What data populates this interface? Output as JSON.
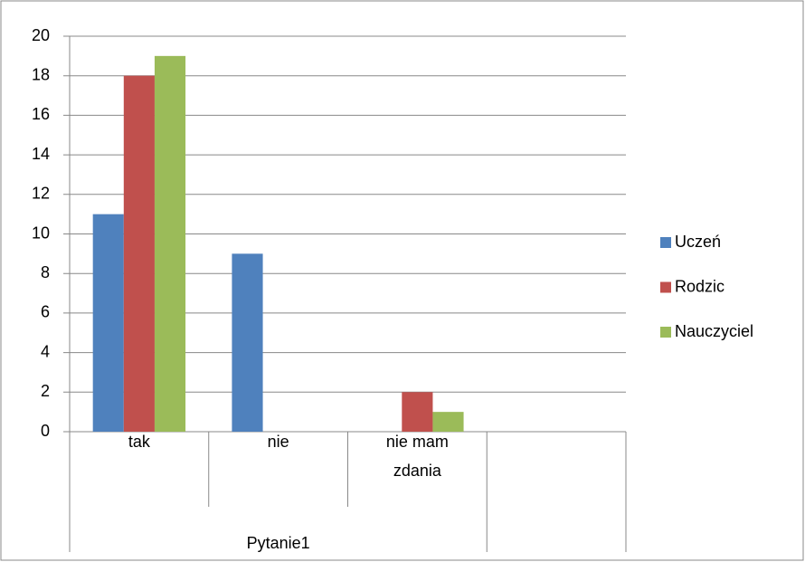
{
  "chart_data": {
    "type": "bar",
    "categories": [
      "tak",
      "nie",
      "nie mam zdania",
      null
    ],
    "group_label": "Pytanie1",
    "series": [
      {
        "name": "Uczeń",
        "color": "#4f81bd",
        "values": [
          11,
          9,
          0,
          null
        ]
      },
      {
        "name": "Rodzic",
        "color": "#c0504d",
        "values": [
          18,
          0,
          2,
          null
        ]
      },
      {
        "name": "Nauczyciel",
        "color": "#9bbb59",
        "values": [
          19,
          0,
          1,
          null
        ]
      }
    ],
    "ylim": [
      0,
      20
    ],
    "yticks": [
      0,
      2,
      4,
      6,
      8,
      10,
      12,
      14,
      16,
      18,
      20
    ],
    "grid": true,
    "legend": "right"
  }
}
